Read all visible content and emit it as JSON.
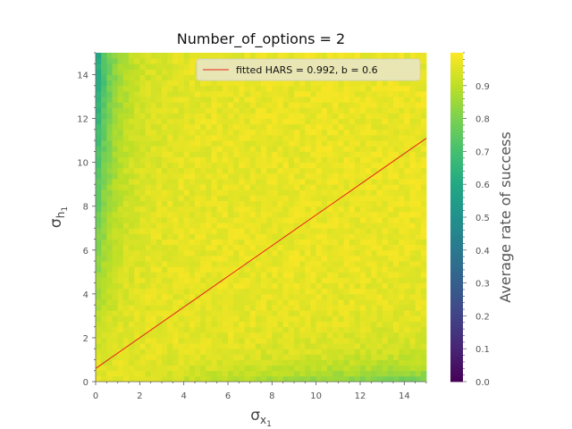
{
  "chart_data": {
    "type": "heatmap",
    "title": "Number_of_options = 2",
    "xlabel": {
      "base": "σ",
      "sub": "x",
      "subsub": "1"
    },
    "ylabel": {
      "base": "σ",
      "sub": "h",
      "subsub": "1"
    },
    "xlim": [
      0,
      15
    ],
    "ylim": [
      0,
      15
    ],
    "xticks": [
      0,
      2,
      4,
      6,
      8,
      10,
      12,
      14
    ],
    "yticks": [
      0,
      2,
      4,
      6,
      8,
      10,
      12,
      14
    ],
    "colormap": "viridis",
    "colorbar": {
      "label": "Average rate of success",
      "range": [
        0.0,
        1.0
      ],
      "ticks": [
        "0.0",
        "0.1",
        "0.2",
        "0.3",
        "0.4",
        "0.5",
        "0.6",
        "0.7",
        "0.8",
        "0.9"
      ]
    },
    "fitted_line": {
      "legend": "fitted HARS = 0.992, b = 0.6",
      "color": "#e8211a",
      "slope": 0.7,
      "intercept": 0.6
    },
    "legend_position": "top-right",
    "description_of_field": {
      "bulk_value": 0.97,
      "left_edge_value_at_top": 0.62,
      "bottom_edge_value_at_right": 0.82
    }
  }
}
